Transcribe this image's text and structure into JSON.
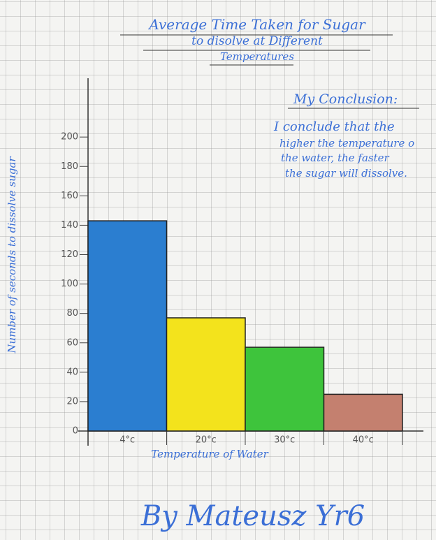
{
  "chart_data": {
    "type": "bar",
    "title_lines": [
      "Average Time Taken for Sugar",
      "to disolve at Different",
      "Temperatures"
    ],
    "y_label": "Number of seconds to dissolve sugar",
    "x_label": "Temperature of Water",
    "categories": [
      "4°c",
      "20°c",
      "30°c",
      "40°c"
    ],
    "values": [
      143,
      77,
      57,
      25
    ],
    "colors": [
      "#2b7ed0",
      "#f3e31c",
      "#3ec43c",
      "#c4806f"
    ],
    "ylim": [
      0,
      240
    ],
    "yticks": [
      0,
      20,
      40,
      60,
      80,
      100,
      120,
      140,
      160,
      180,
      200
    ],
    "annotation_title": "My Conclusion:",
    "annotation_lines": [
      "I conclude that the",
      "higher the temperature o",
      "the water, the faster",
      "the sugar will dissolve."
    ],
    "signature": "By Mateusz Yr6"
  }
}
